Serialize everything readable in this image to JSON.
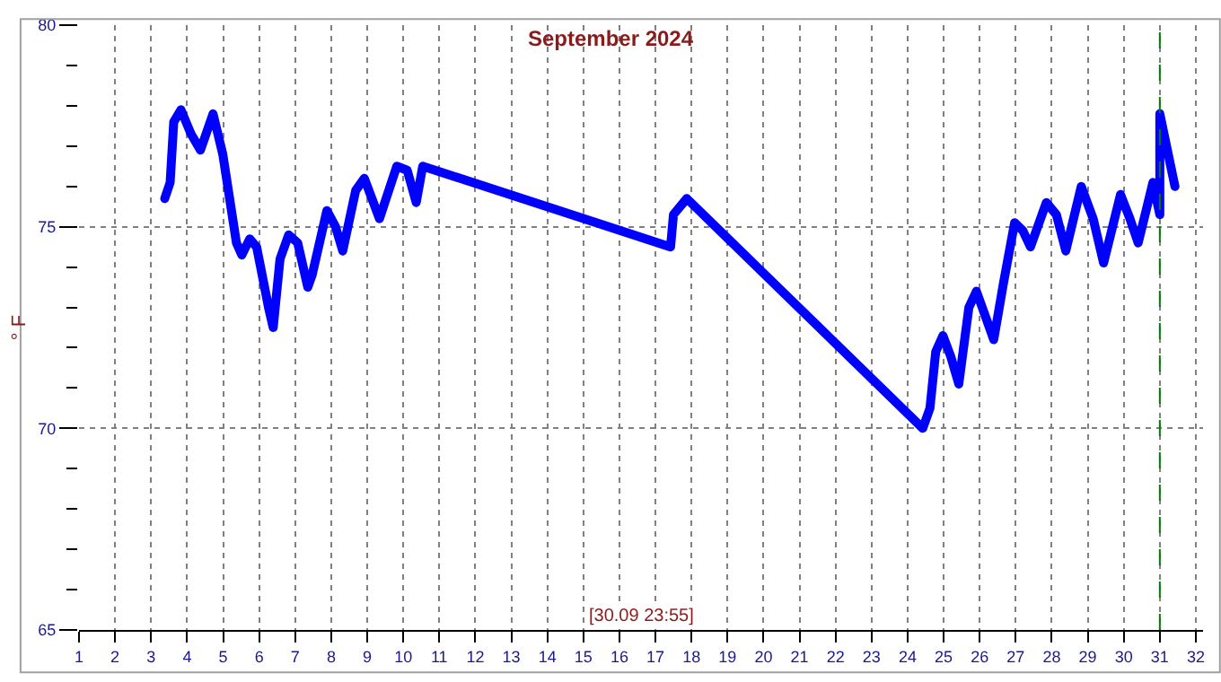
{
  "chart_data": {
    "type": "line",
    "title": "September 2024",
    "ylabel": "° F",
    "annotations": [
      "[30.09 23:55]"
    ],
    "xlim": [
      1,
      32.2
    ],
    "xticks": [
      1,
      2,
      3,
      4,
      5,
      6,
      7,
      8,
      9,
      10,
      11,
      12,
      13,
      14,
      15,
      16,
      17,
      18,
      19,
      20,
      21,
      22,
      23,
      24,
      25,
      26,
      27,
      28,
      29,
      30,
      31,
      32
    ],
    "ylim": [
      65,
      80
    ],
    "yticks": [
      65,
      {
        "value": 66,
        "label": null
      },
      {
        "value": 67,
        "label": null
      },
      {
        "value": 68,
        "label": null
      },
      {
        "value": 69,
        "label": null
      },
      70,
      {
        "value": 71,
        "label": null
      },
      {
        "value": 72,
        "label": null
      },
      {
        "value": 73,
        "label": null
      },
      {
        "value": 74,
        "label": null
      },
      75,
      {
        "value": 76,
        "label": null
      },
      {
        "value": 77,
        "label": null
      },
      {
        "value": 78,
        "label": null
      },
      {
        "value": 79,
        "label": null
      },
      80
    ],
    "grid": true,
    "line_style": "solid",
    "ref_lines": [
      {
        "axis": "x",
        "value": 31,
        "color": "#008000",
        "line_style": "dashed"
      }
    ],
    "series": [
      {
        "color": "#0000ff",
        "x": [
          3.38,
          3.53,
          3.63,
          3.83,
          4.11,
          4.37,
          4.72,
          4.99,
          5.37,
          5.52,
          5.74,
          5.93,
          6.26,
          6.39,
          6.58,
          6.82,
          7.07,
          7.35,
          7.47,
          7.88,
          8.12,
          8.32,
          8.68,
          8.92,
          9.34,
          9.82,
          10.11,
          10.36,
          10.54,
          17.42,
          17.5,
          17.87,
          24.42,
          24.62,
          24.78,
          24.98,
          25.19,
          25.42,
          25.7,
          25.91,
          26.15,
          26.39,
          26.66,
          26.97,
          27.2,
          27.41,
          27.85,
          28.13,
          28.39,
          28.82,
          29.15,
          29.44,
          29.91,
          30.17,
          30.4,
          30.81,
          31.0,
          31.0,
          31.42
        ],
        "values": [
          75.7,
          76.1,
          77.6,
          77.9,
          77.3,
          76.9,
          77.8,
          76.8,
          74.6,
          74.3,
          74.7,
          74.5,
          73.0,
          72.5,
          74.2,
          74.8,
          74.6,
          73.5,
          73.8,
          75.4,
          75.0,
          74.4,
          75.9,
          76.2,
          75.2,
          76.5,
          76.4,
          75.6,
          76.5,
          74.5,
          75.3,
          75.7,
          70.0,
          70.5,
          71.9,
          72.3,
          71.8,
          71.1,
          73.0,
          73.4,
          72.8,
          72.2,
          73.6,
          75.1,
          74.9,
          74.5,
          75.6,
          75.3,
          74.4,
          76.0,
          75.2,
          74.1,
          75.8,
          75.2,
          74.6,
          76.1,
          75.3,
          77.8,
          76.0
        ]
      }
    ]
  }
}
